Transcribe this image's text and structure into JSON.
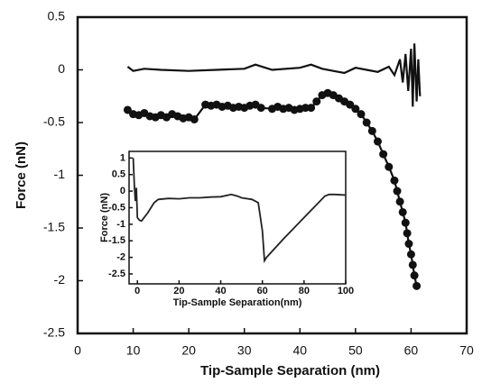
{
  "chart_data": [
    {
      "type": "line",
      "xlabel": "Tip-Sample Separation (nm)",
      "ylabel": "Force (nN)",
      "xlim": [
        0,
        70
      ],
      "xticks": [
        0,
        10,
        20,
        30,
        40,
        50,
        60,
        70
      ],
      "ylim": [
        -2.5,
        0.5
      ],
      "yticks": [
        0.5,
        0,
        -0.5,
        -1,
        -1.5,
        -2,
        -2.5
      ],
      "series": [
        {
          "color": "#111111",
          "marker": false,
          "x": [
            9,
            10,
            12,
            15,
            20,
            25,
            30,
            32,
            35,
            40,
            42,
            44,
            46,
            48,
            50,
            52,
            54,
            56,
            57,
            58,
            58.5,
            59,
            59.5,
            60,
            60.3,
            60.6,
            61,
            61.3,
            61.6
          ],
          "values": [
            0.03,
            -0.01,
            0.01,
            0,
            -0.01,
            0,
            0.01,
            0.05,
            0,
            0.02,
            0.05,
            0.01,
            -0.01,
            -0.03,
            0.02,
            0,
            -0.02,
            0.03,
            -0.05,
            0.1,
            -0.12,
            0.15,
            -0.2,
            0.2,
            -0.35,
            0.25,
            -0.3,
            0.1,
            -0.25
          ]
        },
        {
          "color": "#111111",
          "marker": true,
          "x": [
            9,
            10,
            11,
            12,
            13,
            14,
            15,
            16,
            17,
            18,
            19,
            20,
            21,
            23,
            24,
            25,
            26,
            27,
            28,
            29,
            30,
            31,
            32,
            33,
            35,
            36,
            37,
            38,
            39,
            40,
            41,
            42,
            43,
            44,
            45,
            46,
            47,
            48,
            49,
            50,
            51,
            52,
            53,
            54,
            55,
            56,
            57,
            57.5,
            58,
            58.5,
            59,
            59.3,
            59.6,
            60,
            60.3,
            60.6,
            61
          ],
          "values": [
            -0.38,
            -0.42,
            -0.43,
            -0.41,
            -0.44,
            -0.45,
            -0.43,
            -0.45,
            -0.42,
            -0.44,
            -0.46,
            -0.45,
            -0.47,
            -0.33,
            -0.34,
            -0.33,
            -0.35,
            -0.34,
            -0.36,
            -0.35,
            -0.36,
            -0.34,
            -0.33,
            -0.36,
            -0.37,
            -0.35,
            -0.37,
            -0.36,
            -0.38,
            -0.37,
            -0.36,
            -0.36,
            -0.3,
            -0.24,
            -0.22,
            -0.24,
            -0.27,
            -0.3,
            -0.33,
            -0.37,
            -0.42,
            -0.5,
            -0.58,
            -0.68,
            -0.8,
            -0.92,
            -1.05,
            -1.15,
            -1.25,
            -1.35,
            -1.45,
            -1.55,
            -1.65,
            -1.75,
            -1.85,
            -1.95,
            -2.05
          ]
        }
      ]
    },
    {
      "type": "line",
      "xlabel": "Tip-Sample Separation(nm)",
      "ylabel": "Force (nN)",
      "xlim": [
        -4,
        100
      ],
      "xticks": [
        0,
        20,
        40,
        60,
        80,
        100
      ],
      "ylim": [
        -2.8,
        1.2
      ],
      "yticks": [
        1,
        0.5,
        0,
        -0.5,
        -1,
        -1.5,
        -2,
        -2.5
      ],
      "series": [
        {
          "color": "#222222",
          "marker": false,
          "x": [
            -2,
            -1.5,
            -1,
            -0.5,
            0,
            1,
            2,
            5,
            8,
            10,
            15,
            20,
            25,
            30,
            35,
            40,
            45,
            48,
            50,
            55,
            58,
            60,
            61,
            62,
            70,
            80,
            90,
            92,
            95,
            100
          ],
          "values": [
            1,
            0.2,
            -0.3,
            0.1,
            -0.8,
            -0.88,
            -0.9,
            -0.65,
            -0.35,
            -0.25,
            -0.22,
            -0.23,
            -0.2,
            -0.2,
            -0.18,
            -0.17,
            -0.1,
            -0.15,
            -0.2,
            -0.25,
            -0.35,
            -1.2,
            -2.1,
            -2,
            -1.45,
            -0.8,
            -0.15,
            -0.1,
            -0.1,
            -0.12
          ]
        }
      ]
    }
  ]
}
